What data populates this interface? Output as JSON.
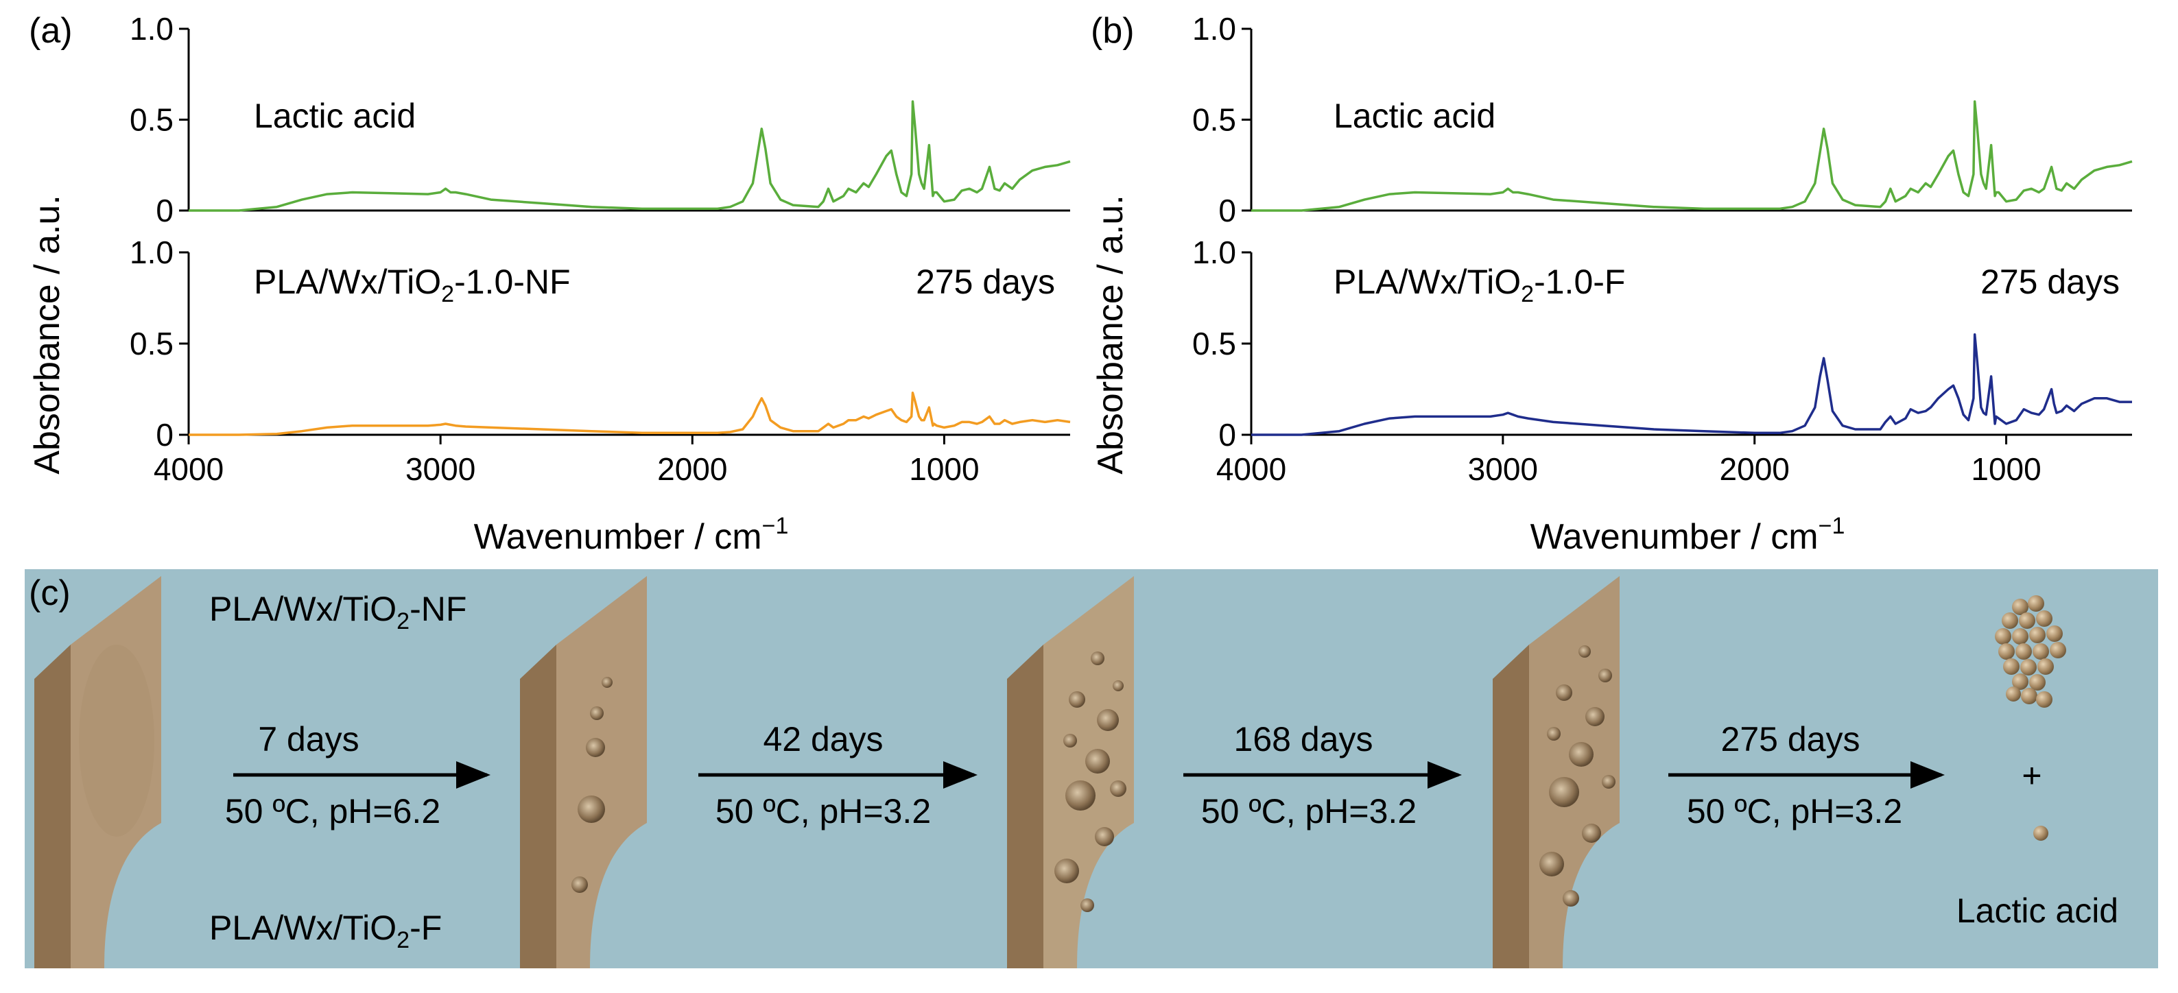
{
  "panels": [
    {
      "panel_label": "(a)",
      "ylabel": "Absorbance / a.u.",
      "xlabel": "Wavenumber / cm",
      "xlabel_sup": "−1",
      "top": {
        "label": "Lactic acid"
      },
      "bottom": {
        "label_pre": "PLA/Wx/TiO",
        "label_sub": "2",
        "label_post": "-1.0-NF",
        "days": "275 days"
      }
    },
    {
      "panel_label": "(b)",
      "ylabel": "Absorbance / a.u.",
      "xlabel": "Wavenumber / cm",
      "xlabel_sup": "−1",
      "top": {
        "label": "Lactic acid"
      },
      "bottom": {
        "label_pre": "PLA/Wx/TiO",
        "label_sub": "2",
        "label_post": "-1.0-F",
        "days": "275 days"
      }
    }
  ],
  "chart_data": [
    {
      "type": "line",
      "panel": "(a) top",
      "title": "Lactic acid",
      "xlim": [
        4000,
        500
      ],
      "ylim": [
        0,
        1.0
      ],
      "xticks": [
        4000,
        3000,
        2000,
        1000
      ],
      "yticks": [
        0,
        0.5,
        1.0
      ],
      "ytick_labels": [
        "0",
        "0.5",
        "1.0"
      ],
      "series": [
        {
          "name": "Lactic acid",
          "color": "#5aad3c",
          "x": [
            4000,
            3800,
            3650,
            3550,
            3450,
            3350,
            3200,
            3050,
            3000,
            2980,
            2960,
            2940,
            2900,
            2800,
            2600,
            2400,
            2200,
            2000,
            1900,
            1850,
            1800,
            1760,
            1740,
            1725,
            1710,
            1690,
            1650,
            1600,
            1500,
            1480,
            1460,
            1440,
            1400,
            1380,
            1350,
            1320,
            1300,
            1270,
            1230,
            1210,
            1190,
            1170,
            1150,
            1130,
            1125,
            1115,
            1100,
            1090,
            1080,
            1060,
            1045,
            1040,
            1030,
            1000,
            960,
            930,
            900,
            870,
            850,
            820,
            810,
            800,
            780,
            760,
            730,
            700,
            650,
            600,
            550,
            500
          ],
          "y": [
            0,
            0,
            0.02,
            0.06,
            0.09,
            0.1,
            0.095,
            0.09,
            0.1,
            0.12,
            0.1,
            0.1,
            0.09,
            0.06,
            0.04,
            0.02,
            0.01,
            0.01,
            0.01,
            0.02,
            0.05,
            0.15,
            0.32,
            0.45,
            0.34,
            0.15,
            0.06,
            0.03,
            0.02,
            0.05,
            0.12,
            0.05,
            0.08,
            0.12,
            0.1,
            0.15,
            0.13,
            0.2,
            0.3,
            0.33,
            0.2,
            0.1,
            0.08,
            0.2,
            0.6,
            0.45,
            0.2,
            0.15,
            0.12,
            0.36,
            0.08,
            0.1,
            0.1,
            0.05,
            0.06,
            0.11,
            0.12,
            0.1,
            0.12,
            0.24,
            0.18,
            0.12,
            0.11,
            0.15,
            0.12,
            0.17,
            0.22,
            0.24,
            0.25,
            0.27
          ]
        }
      ]
    },
    {
      "type": "line",
      "panel": "(a) bottom",
      "title": "PLA/Wx/TiO2-1.0-NF 275 days",
      "xlim": [
        4000,
        500
      ],
      "ylim": [
        0,
        1.0
      ],
      "xticks": [
        4000,
        3000,
        2000,
        1000
      ],
      "yticks": [
        0,
        0.5,
        1.0
      ],
      "ytick_labels": [
        "0",
        "0.5",
        "1.0"
      ],
      "series": [
        {
          "name": "PLA/Wx/TiO2-1.0-NF",
          "color": "#f39c21",
          "x": [
            4000,
            3800,
            3650,
            3550,
            3450,
            3350,
            3200,
            3050,
            3000,
            2980,
            2960,
            2940,
            2900,
            2800,
            2600,
            2400,
            2200,
            2000,
            1900,
            1850,
            1800,
            1760,
            1740,
            1725,
            1710,
            1690,
            1650,
            1600,
            1500,
            1480,
            1460,
            1440,
            1400,
            1380,
            1350,
            1320,
            1300,
            1270,
            1230,
            1210,
            1190,
            1170,
            1150,
            1130,
            1125,
            1115,
            1100,
            1090,
            1080,
            1060,
            1045,
            1040,
            1030,
            1000,
            960,
            930,
            900,
            870,
            850,
            820,
            810,
            800,
            780,
            760,
            730,
            700,
            650,
            600,
            550,
            500
          ],
          "y": [
            0,
            0,
            0.005,
            0.02,
            0.04,
            0.05,
            0.05,
            0.05,
            0.055,
            0.06,
            0.055,
            0.05,
            0.045,
            0.04,
            0.03,
            0.02,
            0.01,
            0.01,
            0.01,
            0.015,
            0.03,
            0.1,
            0.16,
            0.2,
            0.16,
            0.08,
            0.04,
            0.02,
            0.02,
            0.04,
            0.06,
            0.04,
            0.06,
            0.08,
            0.08,
            0.1,
            0.09,
            0.11,
            0.13,
            0.14,
            0.1,
            0.08,
            0.07,
            0.1,
            0.23,
            0.18,
            0.1,
            0.08,
            0.08,
            0.15,
            0.05,
            0.06,
            0.05,
            0.04,
            0.05,
            0.07,
            0.07,
            0.06,
            0.07,
            0.1,
            0.08,
            0.06,
            0.06,
            0.08,
            0.06,
            0.07,
            0.08,
            0.07,
            0.08,
            0.07
          ]
        }
      ]
    },
    {
      "type": "line",
      "panel": "(b) top",
      "title": "Lactic acid",
      "xlim": [
        4000,
        500
      ],
      "ylim": [
        0,
        1.0
      ],
      "xticks": [
        4000,
        3000,
        2000,
        1000
      ],
      "yticks": [
        0,
        0.5,
        1.0
      ],
      "ytick_labels": [
        "0",
        "0.5",
        "1.0"
      ],
      "series": [
        {
          "name": "Lactic acid",
          "color": "#5aad3c",
          "x": [
            4000,
            3800,
            3650,
            3550,
            3450,
            3350,
            3200,
            3050,
            3000,
            2980,
            2960,
            2940,
            2900,
            2800,
            2600,
            2400,
            2200,
            2000,
            1900,
            1850,
            1800,
            1760,
            1740,
            1725,
            1710,
            1690,
            1650,
            1600,
            1500,
            1480,
            1460,
            1440,
            1400,
            1380,
            1350,
            1320,
            1300,
            1270,
            1230,
            1210,
            1190,
            1170,
            1150,
            1130,
            1125,
            1115,
            1100,
            1090,
            1080,
            1060,
            1045,
            1040,
            1030,
            1000,
            960,
            930,
            900,
            870,
            850,
            820,
            810,
            800,
            780,
            760,
            730,
            700,
            650,
            600,
            550,
            500
          ],
          "y": [
            0,
            0,
            0.02,
            0.06,
            0.09,
            0.1,
            0.095,
            0.09,
            0.1,
            0.12,
            0.1,
            0.1,
            0.09,
            0.06,
            0.04,
            0.02,
            0.01,
            0.01,
            0.01,
            0.02,
            0.05,
            0.15,
            0.32,
            0.45,
            0.34,
            0.15,
            0.06,
            0.03,
            0.02,
            0.05,
            0.12,
            0.05,
            0.08,
            0.12,
            0.1,
            0.15,
            0.13,
            0.2,
            0.3,
            0.33,
            0.2,
            0.1,
            0.08,
            0.2,
            0.6,
            0.45,
            0.2,
            0.15,
            0.12,
            0.36,
            0.08,
            0.1,
            0.1,
            0.05,
            0.06,
            0.11,
            0.12,
            0.1,
            0.12,
            0.24,
            0.18,
            0.12,
            0.11,
            0.15,
            0.12,
            0.17,
            0.22,
            0.24,
            0.25,
            0.27
          ]
        }
      ]
    },
    {
      "type": "line",
      "panel": "(b) bottom",
      "title": "PLA/Wx/TiO2-1.0-F 275 days",
      "xlim": [
        4000,
        500
      ],
      "ylim": [
        0,
        1.0
      ],
      "xticks": [
        4000,
        3000,
        2000,
        1000
      ],
      "yticks": [
        0,
        0.5,
        1.0
      ],
      "ytick_labels": [
        "0",
        "0.5",
        "1.0"
      ],
      "series": [
        {
          "name": "PLA/Wx/TiO2-1.0-F",
          "color": "#1f2d8c",
          "x": [
            4000,
            3800,
            3650,
            3550,
            3450,
            3350,
            3200,
            3050,
            3000,
            2980,
            2960,
            2940,
            2900,
            2800,
            2600,
            2400,
            2200,
            2000,
            1900,
            1850,
            1800,
            1760,
            1740,
            1725,
            1710,
            1690,
            1650,
            1600,
            1500,
            1480,
            1460,
            1440,
            1400,
            1380,
            1350,
            1320,
            1300,
            1270,
            1230,
            1210,
            1190,
            1170,
            1150,
            1130,
            1125,
            1115,
            1100,
            1090,
            1080,
            1060,
            1045,
            1040,
            1030,
            1000,
            960,
            930,
            900,
            870,
            850,
            820,
            810,
            800,
            780,
            760,
            730,
            700,
            650,
            600,
            550,
            500
          ],
          "y": [
            0,
            0,
            0.02,
            0.06,
            0.09,
            0.1,
            0.1,
            0.1,
            0.11,
            0.12,
            0.11,
            0.1,
            0.09,
            0.07,
            0.05,
            0.03,
            0.02,
            0.01,
            0.01,
            0.02,
            0.05,
            0.15,
            0.32,
            0.42,
            0.3,
            0.13,
            0.05,
            0.03,
            0.03,
            0.07,
            0.1,
            0.06,
            0.09,
            0.14,
            0.12,
            0.13,
            0.15,
            0.2,
            0.25,
            0.27,
            0.2,
            0.11,
            0.08,
            0.2,
            0.55,
            0.4,
            0.15,
            0.12,
            0.11,
            0.32,
            0.06,
            0.1,
            0.09,
            0.06,
            0.08,
            0.14,
            0.12,
            0.11,
            0.14,
            0.25,
            0.17,
            0.12,
            0.13,
            0.16,
            0.13,
            0.17,
            0.2,
            0.2,
            0.18,
            0.18
          ]
        }
      ]
    }
  ],
  "schematic": {
    "panel_label": "(c)",
    "background": "#9ebfc9",
    "sample_nf_pre": "PLA/Wx/TiO",
    "sample_nf_sub": "2",
    "sample_nf_post": "-NF",
    "sample_f_pre": "PLA/Wx/TiO",
    "sample_f_sub": "2",
    "sample_f_post": "-F",
    "steps": [
      {
        "days": "7 days",
        "condition": "50 ºC, pH=6.2"
      },
      {
        "days": "42 days",
        "condition": "50 ºC, pH=3.2"
      },
      {
        "days": "168 days",
        "condition": "50 ºC, pH=3.2"
      },
      {
        "days": "275 days",
        "condition": "50 ºC, pH=3.2"
      }
    ],
    "plus": "+",
    "product": "Lactic acid"
  }
}
